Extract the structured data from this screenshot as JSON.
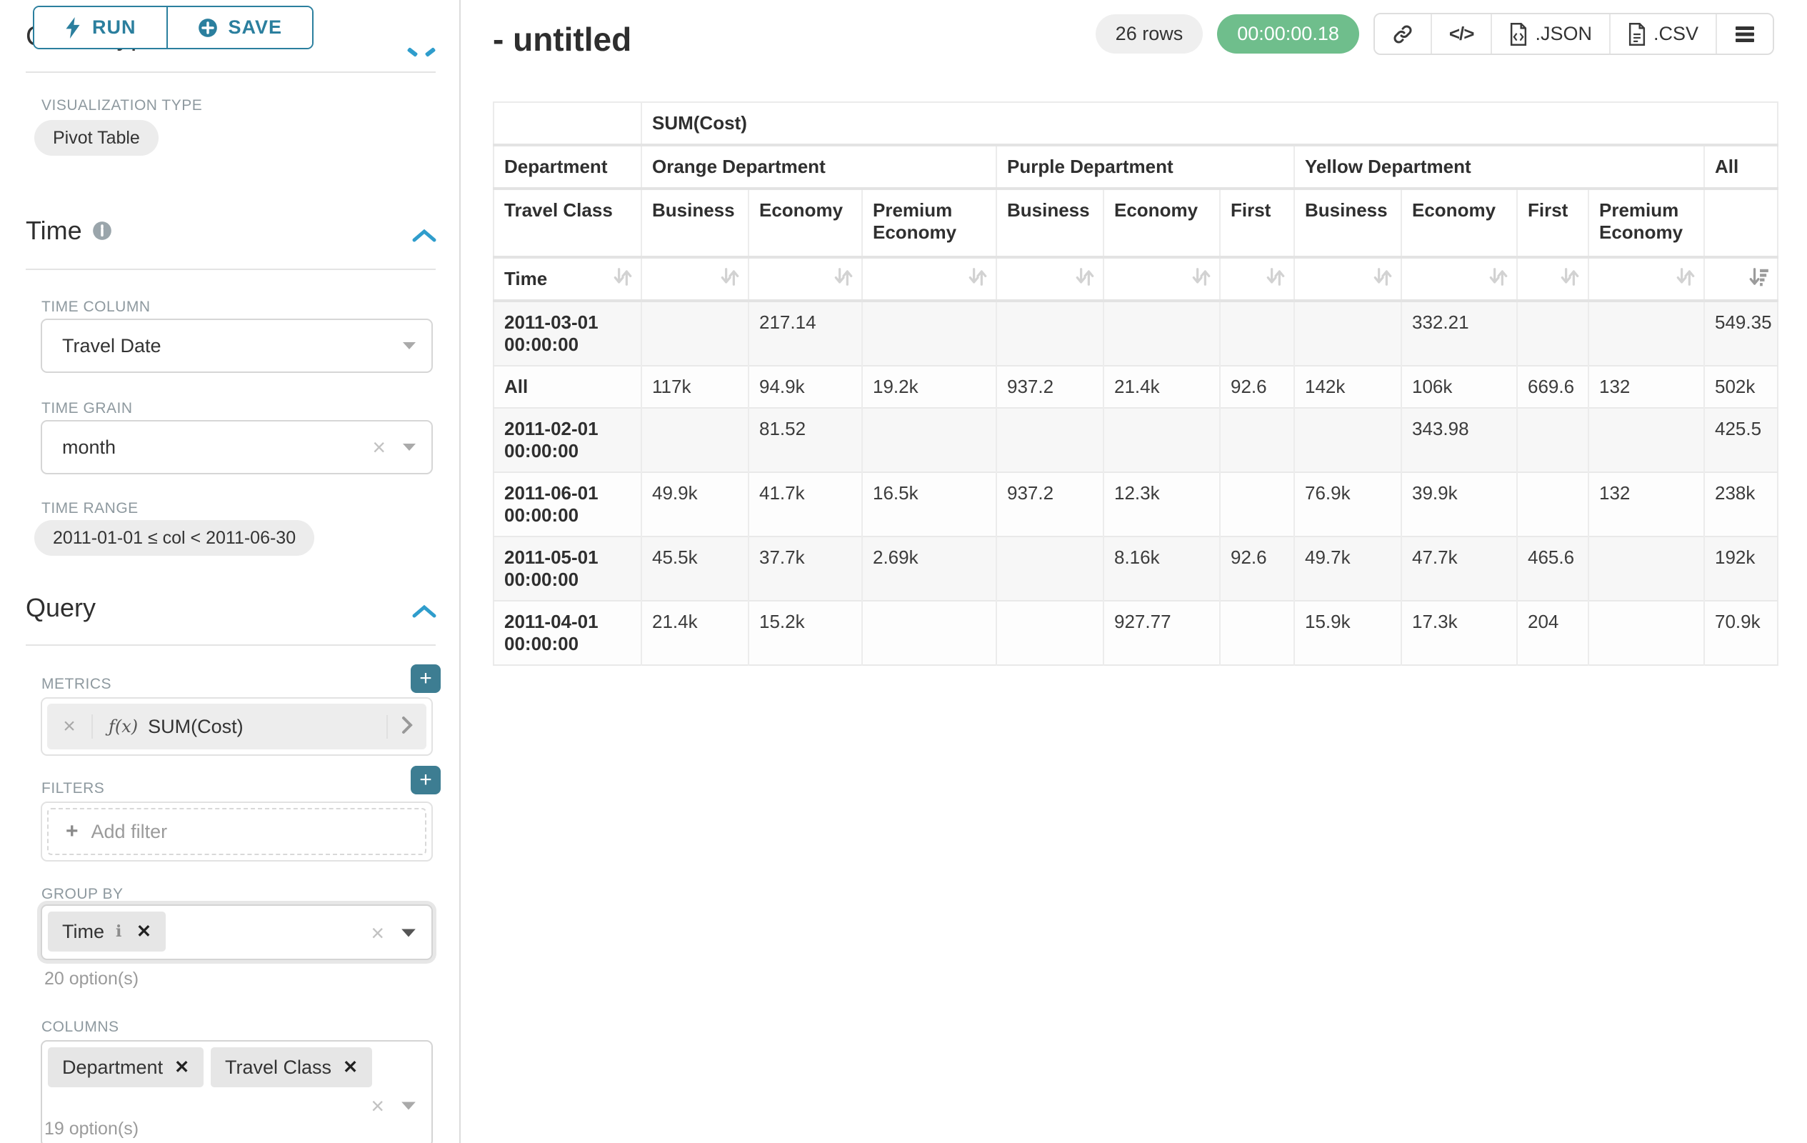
{
  "colors": {
    "accent": "#2b7f9e",
    "plus_button": "#3d7d92",
    "timer_green": "#6fbe8c",
    "chevron_blue": "#2f9dcc",
    "label_gray": "#8e999f",
    "stripe_gray": "#f7f7f7"
  },
  "icons": {
    "run": "bolt-icon",
    "save": "plus-circle-icon",
    "section_info": "info-icon",
    "section_collapse": "chevron-up-icon",
    "select_caret": "caret-down-icon",
    "clear": "x-icon",
    "metric_expand": "chevron-right-icon",
    "share": "link-icon",
    "embed": "code-icon",
    "export": "file-icon",
    "more": "hamburger-icon",
    "sort": "sort-arrows-icon",
    "sort_active": "sort-descending-icon"
  },
  "sidebar": {
    "run_label": "RUN",
    "save_label": "SAVE",
    "clipped_section_title": "Chart Type",
    "viz_label": "VISUALIZATION TYPE",
    "viz_value": "Pivot Table",
    "time_section": {
      "title": "Time",
      "time_column_label": "TIME COLUMN",
      "time_column_value": "Travel Date",
      "time_grain_label": "TIME GRAIN",
      "time_grain_value": "month",
      "time_range_label": "TIME RANGE",
      "time_range_value": "2011-01-01 ≤ col < 2011-06-30"
    },
    "query_section": {
      "title": "Query",
      "metrics_label": "METRICS",
      "metric_prefix": "ƒ(x)",
      "metric_label": "SUM(Cost)",
      "filters_label": "FILTERS",
      "add_filter_label": "Add filter",
      "group_by_label": "GROUP BY",
      "group_by_tags": [
        "Time"
      ],
      "group_by_hint": "20 option(s)",
      "columns_label": "COLUMNS",
      "columns_tags": [
        "Department",
        "Travel Class"
      ],
      "columns_hint": "19 option(s)"
    }
  },
  "header": {
    "title": "- untitled",
    "row_count": "26 rows",
    "timer": "00:00:00.18",
    "json_label": ".JSON",
    "csv_label": ".CSV"
  },
  "table": {
    "metric_header": "SUM(Cost)",
    "department_header": "Department",
    "travel_class_header": "Travel Class",
    "time_header": "Time",
    "all_header": "All",
    "groups": [
      {
        "label": "Orange Department",
        "cols": [
          "Business",
          "Economy",
          "Premium Economy"
        ]
      },
      {
        "label": "Purple Department",
        "cols": [
          "Business",
          "Economy",
          "First"
        ]
      },
      {
        "label": "Yellow Department",
        "cols": [
          "Business",
          "Economy",
          "First",
          "Premium Economy"
        ]
      }
    ],
    "rows": [
      {
        "label": "2011-03-01 00:00:00",
        "values": [
          "",
          "217.14",
          "",
          "",
          "",
          "",
          "",
          "332.21",
          "",
          "",
          "549.35"
        ]
      },
      {
        "label": "All",
        "values": [
          "117k",
          "94.9k",
          "19.2k",
          "937.2",
          "21.4k",
          "92.6",
          "142k",
          "106k",
          "669.6",
          "132",
          "502k"
        ]
      },
      {
        "label": "2011-02-01 00:00:00",
        "values": [
          "",
          "81.52",
          "",
          "",
          "",
          "",
          "",
          "343.98",
          "",
          "",
          "425.5"
        ]
      },
      {
        "label": "2011-06-01 00:00:00",
        "values": [
          "49.9k",
          "41.7k",
          "16.5k",
          "937.2",
          "12.3k",
          "",
          "76.9k",
          "39.9k",
          "",
          "132",
          "238k"
        ]
      },
      {
        "label": "2011-05-01 00:00:00",
        "values": [
          "45.5k",
          "37.7k",
          "2.69k",
          "",
          "8.16k",
          "92.6",
          "49.7k",
          "47.7k",
          "465.6",
          "",
          "192k"
        ]
      },
      {
        "label": "2011-04-01 00:00:00",
        "values": [
          "21.4k",
          "15.2k",
          "",
          "",
          "927.77",
          "",
          "15.9k",
          "17.3k",
          "204",
          "",
          "70.9k"
        ]
      }
    ]
  }
}
